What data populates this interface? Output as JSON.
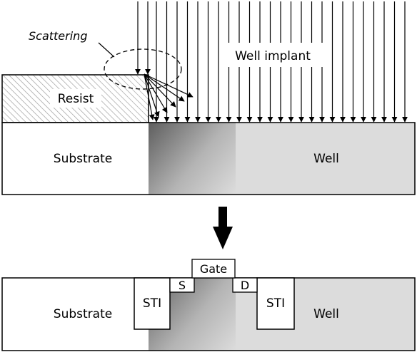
{
  "top": {
    "scattering_label": "Scattering",
    "implant_label": "Well implant",
    "resist_label": "Resist",
    "substrate_label": "Substrate",
    "well_label": "Well"
  },
  "bottom": {
    "substrate_label": "Substrate",
    "well_label": "Well",
    "sti_left_label": "STI",
    "sti_right_label": "STI",
    "source_label": "S",
    "drain_label": "D",
    "gate_label": "Gate"
  },
  "colors": {
    "outline": "#000000",
    "substrate": "#ffffff",
    "well": "#dcdcdc",
    "gradient_dark": "#6a6a6a",
    "hatch": "#9a9a9a"
  }
}
